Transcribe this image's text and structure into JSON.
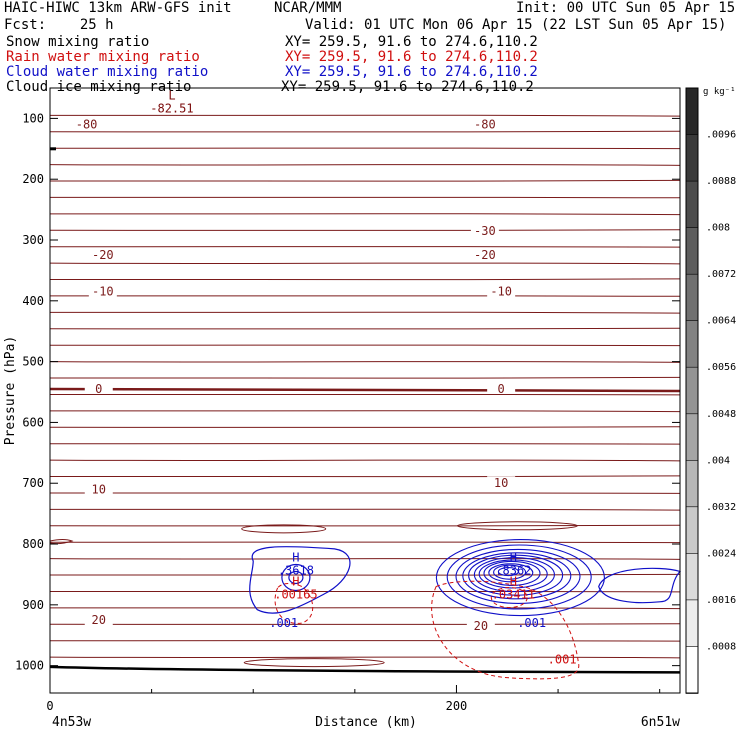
{
  "header": {
    "title": "HAIC-HIWC 13km ARW-GFS init",
    "source": "NCAR/MMM",
    "init": "Init: 00 UTC Sun 05 Apr 15",
    "fcst": "Fcst:    25 h",
    "valid": "Valid: 01 UTC Mon 06 Apr 15 (22 LST Sun 05 Apr 15)",
    "fields": [
      {
        "name": "Snow mixing ratio",
        "xy": "XY= 259.5, 91.6 to 274.6,110.2",
        "color": "#000000"
      },
      {
        "name": "Rain water mixing ratio",
        "xy": "XY= 259.5, 91.6 to 274.6,110.2",
        "color": "#d01010"
      },
      {
        "name": "Cloud water mixing ratio",
        "xy": "XY= 259.5, 91.6 to 274.6,110.2",
        "color": "#1010c8"
      },
      {
        "name": "Cloud ice mixing ratio",
        "xy": "XY= 259.5, 91.6 to 274.6,110.2",
        "color": "#000000"
      }
    ]
  },
  "chart_data": {
    "type": "cross-section",
    "ylabel": "Pressure (hPa)",
    "xlabel": "Distance (km)",
    "x_endpoints": [
      "4n53w",
      "6n51w"
    ],
    "xlim": [
      0,
      310
    ],
    "ylim": [
      1045,
      50
    ],
    "xticks": [
      0,
      200
    ],
    "yticks": [
      100,
      200,
      300,
      400,
      500,
      600,
      700,
      800,
      900,
      1000
    ],
    "colorbar": {
      "unit": "g kg⁻¹",
      "labels": [
        ".0096",
        ".0088",
        ".008",
        ".0072",
        ".0064",
        ".0056",
        ".0048",
        ".004",
        ".0032",
        ".0024",
        ".0016",
        ".0008"
      ]
    },
    "temperature_labels": [
      {
        "text": "-80",
        "x": 18,
        "p": 110
      },
      {
        "text": "-80",
        "x": 214,
        "p": 110
      },
      {
        "text": "-30",
        "x": 214,
        "p": 285
      },
      {
        "text": "-20",
        "x": 26,
        "p": 325
      },
      {
        "text": "-20",
        "x": 214,
        "p": 325
      },
      {
        "text": "-10",
        "x": 26,
        "p": 385
      },
      {
        "text": "-10",
        "x": 222,
        "p": 385
      },
      {
        "text": "0",
        "x": 24,
        "p": 545
      },
      {
        "text": "0",
        "x": 222,
        "p": 545
      },
      {
        "text": "10",
        "x": 24,
        "p": 710
      },
      {
        "text": "10",
        "x": 222,
        "p": 700
      },
      {
        "text": "20",
        "x": 24,
        "p": 925
      },
      {
        "text": "20",
        "x": 212,
        "p": 935
      }
    ],
    "extrema": [
      {
        "type": "L",
        "value": "-82.51",
        "x": 60,
        "p": 85,
        "color": "#7a0a0a"
      },
      {
        "type": "H",
        "value": ".3618",
        "x": 121,
        "p": 845,
        "color": "#1010c8"
      },
      {
        "type": "H",
        "value": ".00165",
        "x": 121,
        "p": 885,
        "color": "#d01010"
      },
      {
        "type": "H",
        "value": ".8362",
        "x": 228,
        "p": 845,
        "color": "#1010c8"
      },
      {
        "type": "H",
        "value": ".03411",
        "x": 228,
        "p": 885,
        "color": "#d01010"
      }
    ],
    "contour_labels": [
      {
        "text": ".001",
        "x": 115,
        "p": 930,
        "color": "#1010c8"
      },
      {
        "text": ".001",
        "x": 237,
        "p": 930,
        "color": "#1010c8"
      },
      {
        "text": ".001",
        "x": 252,
        "p": 990,
        "color": "#d01010"
      }
    ]
  }
}
